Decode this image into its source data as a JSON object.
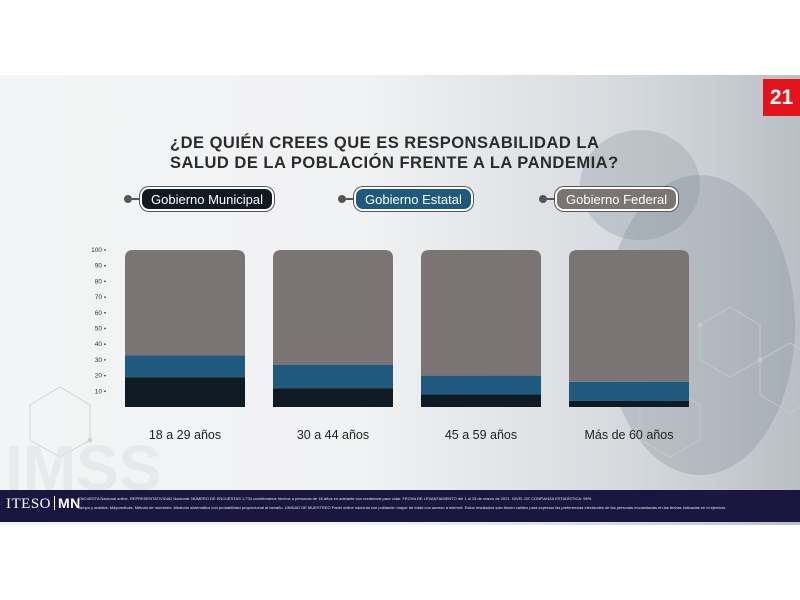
{
  "slide_number": "21",
  "title_lines": [
    "¿DE QUIÉN CREES QUE ES RESPONSABILIDAD LA",
    "SALUD DE LA POBLACIÓN FRENTE A LA PANDEMIA?"
  ],
  "legend": [
    {
      "label": "Gobierno Municipal",
      "color": "#0f1a22"
    },
    {
      "label": "Gobierno Estatal",
      "color": "#1f5a7e"
    },
    {
      "label": "Gobierno Federal",
      "color": "#7a7574"
    }
  ],
  "chart_data": {
    "type": "bar",
    "stacked": true,
    "categories": [
      "18 a 29 años",
      "30 a 44 años",
      "45 a 59 años",
      "Más de 60 años"
    ],
    "series": [
      {
        "name": "Gobierno Municipal",
        "color": "#0f1a22",
        "values": [
          19,
          12,
          8,
          4
        ]
      },
      {
        "name": "Gobierno Estatal",
        "color": "#1f5a7e",
        "values": [
          14,
          15,
          12,
          12
        ]
      },
      {
        "name": "Gobierno Federal",
        "color": "#7a7574",
        "values": [
          67,
          73,
          80,
          84
        ]
      }
    ],
    "yticks": [
      10,
      20,
      30,
      40,
      50,
      60,
      70,
      80,
      90,
      100
    ],
    "ylim": [
      0,
      100
    ],
    "grid": false,
    "legend_position": "top"
  },
  "footer": {
    "logo_left": "ITESO",
    "logo_right": "MN",
    "line1": "ENCUESTA Nacional online. REPRESENTATIVIDAD Nacional. NÚMERO DE ENCUESTAS 1,734 cuestionarios hechos a personas de 18 años en adelante con credencial para votar. FECHA DE LEVANTAMIENTO del 1 al 15 de marzo de 2021. NIVEL DE CONFIANZA ESTADÍSTICA: 95%",
    "line2": "campo y análisis: Mayoredicas. Método de muestreo: Aleatorio sistemático con probabilidad proporcional al tamaño. UNIDAD DE MUESTREO Panel online nacional con población mayor de edad con acceso a internet. Estos resultados solo tienen validez para expresar las preferencias electorales de las personas encuestadas en las fechas indicadas en el ejercicio."
  }
}
